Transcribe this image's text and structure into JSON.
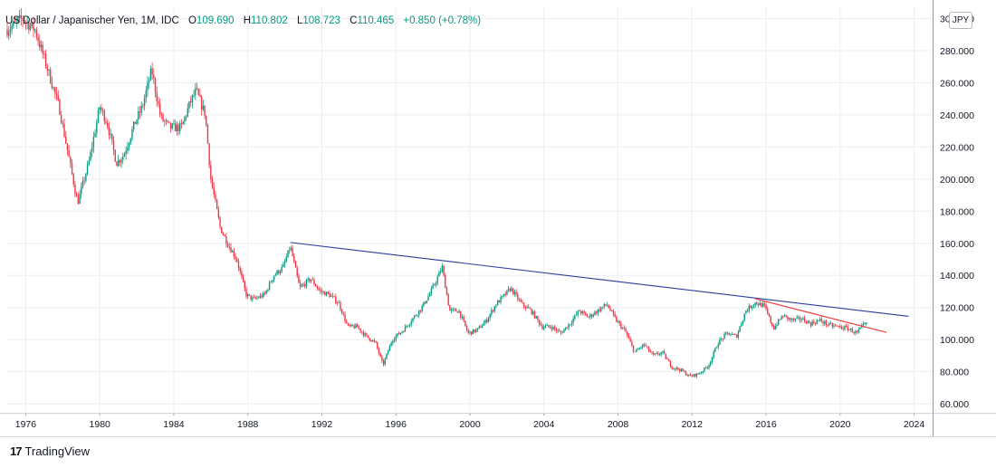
{
  "header": {
    "title": "US Dollar / Japanischer Yen, 1M, IDC",
    "open_label": "O",
    "open": "109.690",
    "high_label": "H",
    "high": "110.802",
    "low_label": "L",
    "low": "108.723",
    "close_label": "C",
    "close": "110.465",
    "change": "+0.850",
    "change_pct": "(+0.78%)"
  },
  "currency_badge": "JPY",
  "branding": {
    "logo": "17",
    "name": "TradingView"
  },
  "colors": {
    "up": "#089981",
    "down": "#f23645",
    "trendline_long": "#2a3f9e",
    "trendline_short": "#ef3b3b",
    "grid": "#eceef2",
    "axis_text": "#131722"
  },
  "chart_data": {
    "type": "candlestick",
    "title": "US Dollar / Japanischer Yen, 1M, IDC",
    "xlabel": "",
    "ylabel": "",
    "xlim": [
      1975.0,
      2025.0
    ],
    "ylim": [
      55,
      307
    ],
    "grid": true,
    "x_ticks": [
      "1976",
      "1980",
      "1984",
      "1988",
      "1992",
      "1996",
      "2000",
      "2004",
      "2008",
      "2012",
      "2016",
      "2020",
      "2024"
    ],
    "y_ticks": [
      "60.000",
      "80.000",
      "100.000",
      "120.000",
      "140.000",
      "160.000",
      "180.000",
      "200.000",
      "220.000",
      "240.000",
      "260.000",
      "280.000",
      "300.000"
    ],
    "last_candle": {
      "open": 109.69,
      "high": 110.802,
      "low": 108.723,
      "close": 110.465,
      "change": 0.85,
      "change_pct": 0.78
    },
    "price_path": [
      [
        1975.0,
        293
      ],
      [
        1975.8,
        300
      ],
      [
        1976.5,
        293
      ],
      [
        1977.0,
        275
      ],
      [
        1977.8,
        245
      ],
      [
        1978.3,
        215
      ],
      [
        1978.8,
        185
      ],
      [
        1979.4,
        210
      ],
      [
        1980.0,
        245
      ],
      [
        1980.4,
        235
      ],
      [
        1980.9,
        210
      ],
      [
        1981.3,
        215
      ],
      [
        1981.9,
        235
      ],
      [
        1982.3,
        245
      ],
      [
        1982.8,
        268
      ],
      [
        1983.3,
        238
      ],
      [
        1983.8,
        232
      ],
      [
        1984.4,
        232
      ],
      [
        1984.9,
        248
      ],
      [
        1985.2,
        255
      ],
      [
        1985.7,
        240
      ],
      [
        1986.0,
        200
      ],
      [
        1986.5,
        170
      ],
      [
        1986.9,
        160
      ],
      [
        1987.4,
        150
      ],
      [
        1987.9,
        128
      ],
      [
        1988.3,
        125
      ],
      [
        1988.9,
        128
      ],
      [
        1989.4,
        140
      ],
      [
        1989.9,
        145
      ],
      [
        1990.3,
        158
      ],
      [
        1990.8,
        132
      ],
      [
        1991.4,
        138
      ],
      [
        1991.9,
        130
      ],
      [
        1992.4,
        128
      ],
      [
        1992.9,
        123
      ],
      [
        1993.4,
        108
      ],
      [
        1993.9,
        108
      ],
      [
        1994.4,
        102
      ],
      [
        1994.9,
        98
      ],
      [
        1995.3,
        84
      ],
      [
        1995.8,
        100
      ],
      [
        1996.4,
        106
      ],
      [
        1996.9,
        113
      ],
      [
        1997.4,
        120
      ],
      [
        1997.9,
        130
      ],
      [
        1998.5,
        145
      ],
      [
        1998.9,
        118
      ],
      [
        1999.4,
        118
      ],
      [
        1999.9,
        104
      ],
      [
        2000.4,
        106
      ],
      [
        2000.9,
        112
      ],
      [
        2001.4,
        122
      ],
      [
        2001.9,
        128
      ],
      [
        2002.2,
        132
      ],
      [
        2002.8,
        122
      ],
      [
        2003.3,
        118
      ],
      [
        2003.9,
        108
      ],
      [
        2004.4,
        108
      ],
      [
        2004.9,
        104
      ],
      [
        2005.4,
        110
      ],
      [
        2005.9,
        118
      ],
      [
        2006.4,
        114
      ],
      [
        2006.9,
        118
      ],
      [
        2007.4,
        122
      ],
      [
        2007.9,
        112
      ],
      [
        2008.4,
        105
      ],
      [
        2008.9,
        92
      ],
      [
        2009.4,
        97
      ],
      [
        2009.9,
        90
      ],
      [
        2010.4,
        92
      ],
      [
        2010.9,
        83
      ],
      [
        2011.4,
        81
      ],
      [
        2011.9,
        77
      ],
      [
        2012.4,
        79
      ],
      [
        2012.9,
        84
      ],
      [
        2013.4,
        98
      ],
      [
        2013.9,
        104
      ],
      [
        2014.4,
        102
      ],
      [
        2014.9,
        118
      ],
      [
        2015.4,
        123
      ],
      [
        2015.9,
        121
      ],
      [
        2016.4,
        107
      ],
      [
        2016.9,
        115
      ],
      [
        2017.4,
        112
      ],
      [
        2017.9,
        113
      ],
      [
        2018.4,
        110
      ],
      [
        2018.9,
        112
      ],
      [
        2019.4,
        109
      ],
      [
        2019.9,
        108
      ],
      [
        2020.4,
        107
      ],
      [
        2020.9,
        104
      ],
      [
        2021.2,
        108
      ],
      [
        2021.4,
        110.465
      ]
    ],
    "trendlines": [
      {
        "color": "trendline_long",
        "from": [
          1990.3,
          160.5
        ],
        "to": [
          2023.7,
          114.5
        ]
      },
      {
        "color": "trendline_short",
        "from": [
          2015.4,
          125.5
        ],
        "to": [
          2022.5,
          104.5
        ]
      }
    ]
  }
}
